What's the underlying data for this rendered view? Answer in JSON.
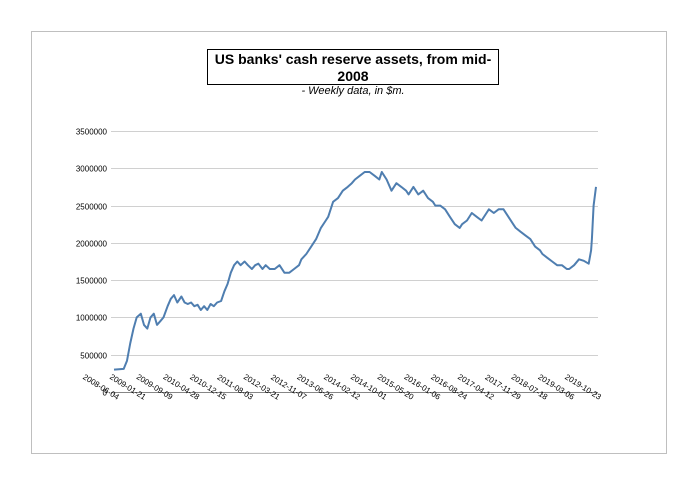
{
  "chart_data": {
    "type": "line",
    "title": "US banks' cash reserve assets, from mid-2008",
    "subtitle": "- Weekly data, in $m.",
    "xlabel": "",
    "ylabel": "",
    "ylim": [
      0,
      3500000
    ],
    "yticks": [
      "0",
      "500000",
      "1000000",
      "1500000",
      "2000000",
      "2500000",
      "3000000",
      "3500000"
    ],
    "xticks": [
      "2008-06-04",
      "2009-01-21",
      "2009-09-09",
      "2010-04-28",
      "2010-12-15",
      "2011-08-03",
      "2012-03-21",
      "2012-11-07",
      "2013-06-26",
      "2014-02-12",
      "2014-10-01",
      "2015-05-20",
      "2016-01-06",
      "2016-08-24",
      "2017-04-12",
      "2017-11-29",
      "2018-07-18",
      "2019-03-06",
      "2019-10-23"
    ],
    "grid": "horizontal",
    "line_color": "#4f7eb0",
    "series": [
      {
        "x": [
          "2008-06-04",
          "2008-08-27",
          "2008-09-24",
          "2008-10-22",
          "2008-11-19",
          "2008-12-17",
          "2009-01-21",
          "2009-02-18",
          "2009-03-18",
          "2009-04-15",
          "2009-05-13",
          "2009-06-10",
          "2009-07-08",
          "2009-08-05",
          "2009-09-09",
          "2009-10-07",
          "2009-11-04",
          "2009-12-02",
          "2010-01-06",
          "2010-02-03",
          "2010-03-03",
          "2010-03-31",
          "2010-04-28",
          "2010-05-26",
          "2010-06-23",
          "2010-07-21",
          "2010-08-18",
          "2010-09-15",
          "2010-10-13",
          "2010-11-10",
          "2010-12-15",
          "2011-01-12",
          "2011-02-09",
          "2011-03-09",
          "2011-04-06",
          "2011-05-04",
          "2011-06-01",
          "2011-07-06",
          "2011-08-03",
          "2011-09-07",
          "2011-10-05",
          "2011-11-02",
          "2011-12-07",
          "2012-01-04",
          "2012-02-08",
          "2012-03-21",
          "2012-05-02",
          "2012-06-13",
          "2012-07-25",
          "2012-09-05",
          "2012-10-17",
          "2012-11-07",
          "2012-12-19",
          "2013-01-30",
          "2013-03-13",
          "2013-04-24",
          "2013-06-05",
          "2013-06-26",
          "2013-08-07",
          "2013-09-18",
          "2013-10-30",
          "2013-12-11",
          "2014-01-15",
          "2014-02-12",
          "2014-03-26",
          "2014-05-07",
          "2014-06-18",
          "2014-07-30",
          "2014-09-10",
          "2014-10-01",
          "2014-11-12",
          "2014-12-24",
          "2015-02-04",
          "2015-03-18",
          "2015-04-29",
          "2015-05-20",
          "2015-07-01",
          "2015-08-12",
          "2015-09-23",
          "2015-11-04",
          "2015-12-16",
          "2016-01-06",
          "2016-02-17",
          "2016-03-30",
          "2016-05-11",
          "2016-06-22",
          "2016-08-03",
          "2016-08-24",
          "2016-10-05",
          "2016-11-16",
          "2016-12-28",
          "2017-02-08",
          "2017-03-22",
          "2017-04-12",
          "2017-05-24",
          "2017-07-05",
          "2017-08-16",
          "2017-09-27",
          "2017-11-08",
          "2017-11-29",
          "2018-01-10",
          "2018-02-21",
          "2018-04-04",
          "2018-05-16",
          "2018-06-27",
          "2018-07-18",
          "2018-08-29",
          "2018-10-10",
          "2018-11-21",
          "2019-01-02",
          "2019-02-13",
          "2019-03-06",
          "2019-04-17",
          "2019-05-29",
          "2019-07-10",
          "2019-08-21",
          "2019-09-11",
          "2019-09-18",
          "2019-10-02",
          "2019-10-23"
        ],
        "values": [
          300000,
          310000,
          420000,
          650000,
          850000,
          1000000,
          1050000,
          900000,
          850000,
          1000000,
          1050000,
          900000,
          950000,
          1000000,
          1150000,
          1250000,
          1300000,
          1200000,
          1280000,
          1200000,
          1180000,
          1200000,
          1150000,
          1170000,
          1100000,
          1150000,
          1100000,
          1180000,
          1150000,
          1200000,
          1220000,
          1350000,
          1450000,
          1600000,
          1700000,
          1750000,
          1700000,
          1750000,
          1700000,
          1650000,
          1700000,
          1720000,
          1650000,
          1700000,
          1650000,
          1650000,
          1700000,
          1600000,
          1600000,
          1650000,
          1700000,
          1780000,
          1850000,
          1950000,
          2050000,
          2200000,
          2300000,
          2350000,
          2550000,
          2600000,
          2700000,
          2750000,
          2800000,
          2850000,
          2900000,
          2950000,
          2950000,
          2900000,
          2850000,
          2950000,
          2850000,
          2700000,
          2800000,
          2750000,
          2700000,
          2650000,
          2750000,
          2650000,
          2700000,
          2600000,
          2550000,
          2500000,
          2500000,
          2450000,
          2350000,
          2250000,
          2200000,
          2250000,
          2300000,
          2400000,
          2350000,
          2300000,
          2400000,
          2450000,
          2400000,
          2450000,
          2450000,
          2350000,
          2250000,
          2200000,
          2150000,
          2100000,
          2050000,
          1950000,
          1900000,
          1850000,
          1800000,
          1750000,
          1700000,
          1700000,
          1650000,
          1650000,
          1700000,
          1780000,
          1760000,
          1720000,
          1900000,
          2050000,
          2500000,
          2750000
        ]
      }
    ]
  }
}
